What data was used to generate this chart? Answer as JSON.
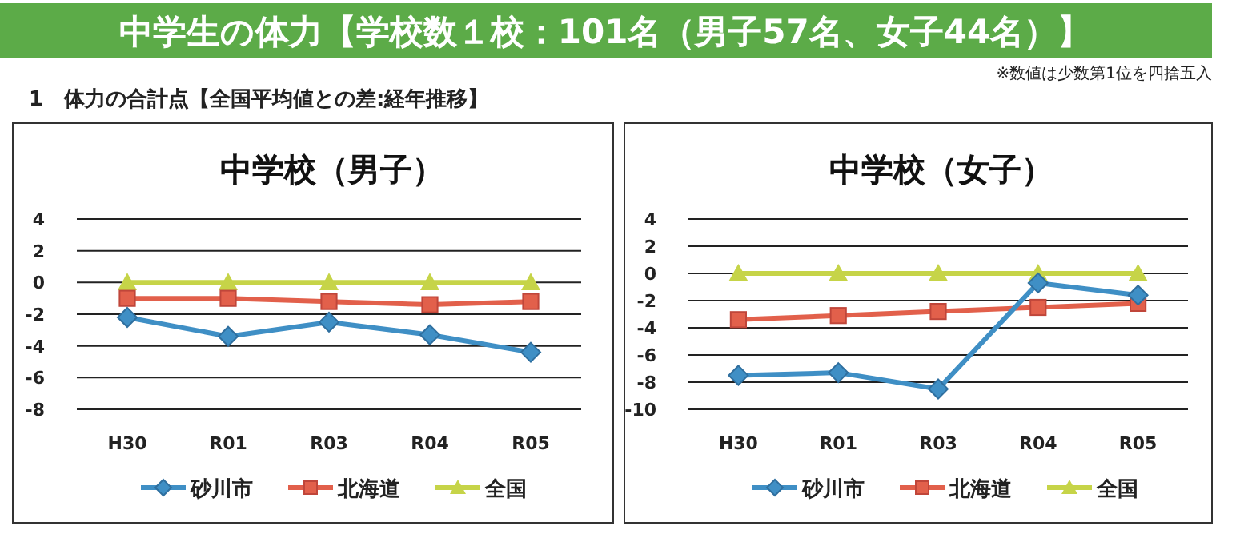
{
  "chart_data": [
    {
      "type": "line",
      "title": "中学校（男子）",
      "categories": [
        "H30",
        "R01",
        "R03",
        "R04",
        "R05"
      ],
      "annotations": [
        "中学生の体力【学校数１校：101名（男子57名、女子44名）】",
        "※数値は少数第1位を四捨五入",
        "1　体力の合計点【全国平均値との差:経年推移】"
      ],
      "series": [
        {
          "name": "砂川市",
          "color": "#3f8fc5",
          "marker": "diamond",
          "values": [
            -2.2,
            -3.4,
            -2.5,
            -3.3,
            -4.4
          ]
        },
        {
          "name": "北海道",
          "color": "#e2604b",
          "marker": "square",
          "values": [
            -1.0,
            -1.0,
            -1.2,
            -1.4,
            -1.2
          ]
        },
        {
          "name": "全国",
          "color": "#c6d448",
          "marker": "triangle",
          "values": [
            0,
            0,
            0,
            0,
            0
          ]
        }
      ],
      "ylim": [
        -8,
        4
      ],
      "yticks": [
        -8,
        -6,
        -4,
        -2,
        0,
        2,
        4
      ],
      "grid": "y",
      "legend": "bottom",
      "line_style": "solid"
    },
    {
      "type": "line",
      "title": "中学校（女子）",
      "categories": [
        "H30",
        "R01",
        "R03",
        "R04",
        "R05"
      ],
      "series": [
        {
          "name": "砂川市",
          "color": "#3f8fc5",
          "marker": "diamond",
          "values": [
            -7.5,
            -7.3,
            -8.5,
            -0.7,
            -1.6
          ]
        },
        {
          "name": "北海道",
          "color": "#e2604b",
          "marker": "square",
          "values": [
            -3.4,
            -3.1,
            -2.8,
            -2.5,
            -2.2
          ]
        },
        {
          "name": "全国",
          "color": "#c6d448",
          "marker": "triangle",
          "values": [
            0,
            0,
            0,
            0,
            0
          ]
        }
      ],
      "ylim": [
        -10,
        4
      ],
      "yticks": [
        -10,
        -8,
        -6,
        -4,
        -2,
        0,
        2,
        4
      ],
      "grid": "y",
      "legend": "bottom",
      "line_style": "solid"
    }
  ]
}
